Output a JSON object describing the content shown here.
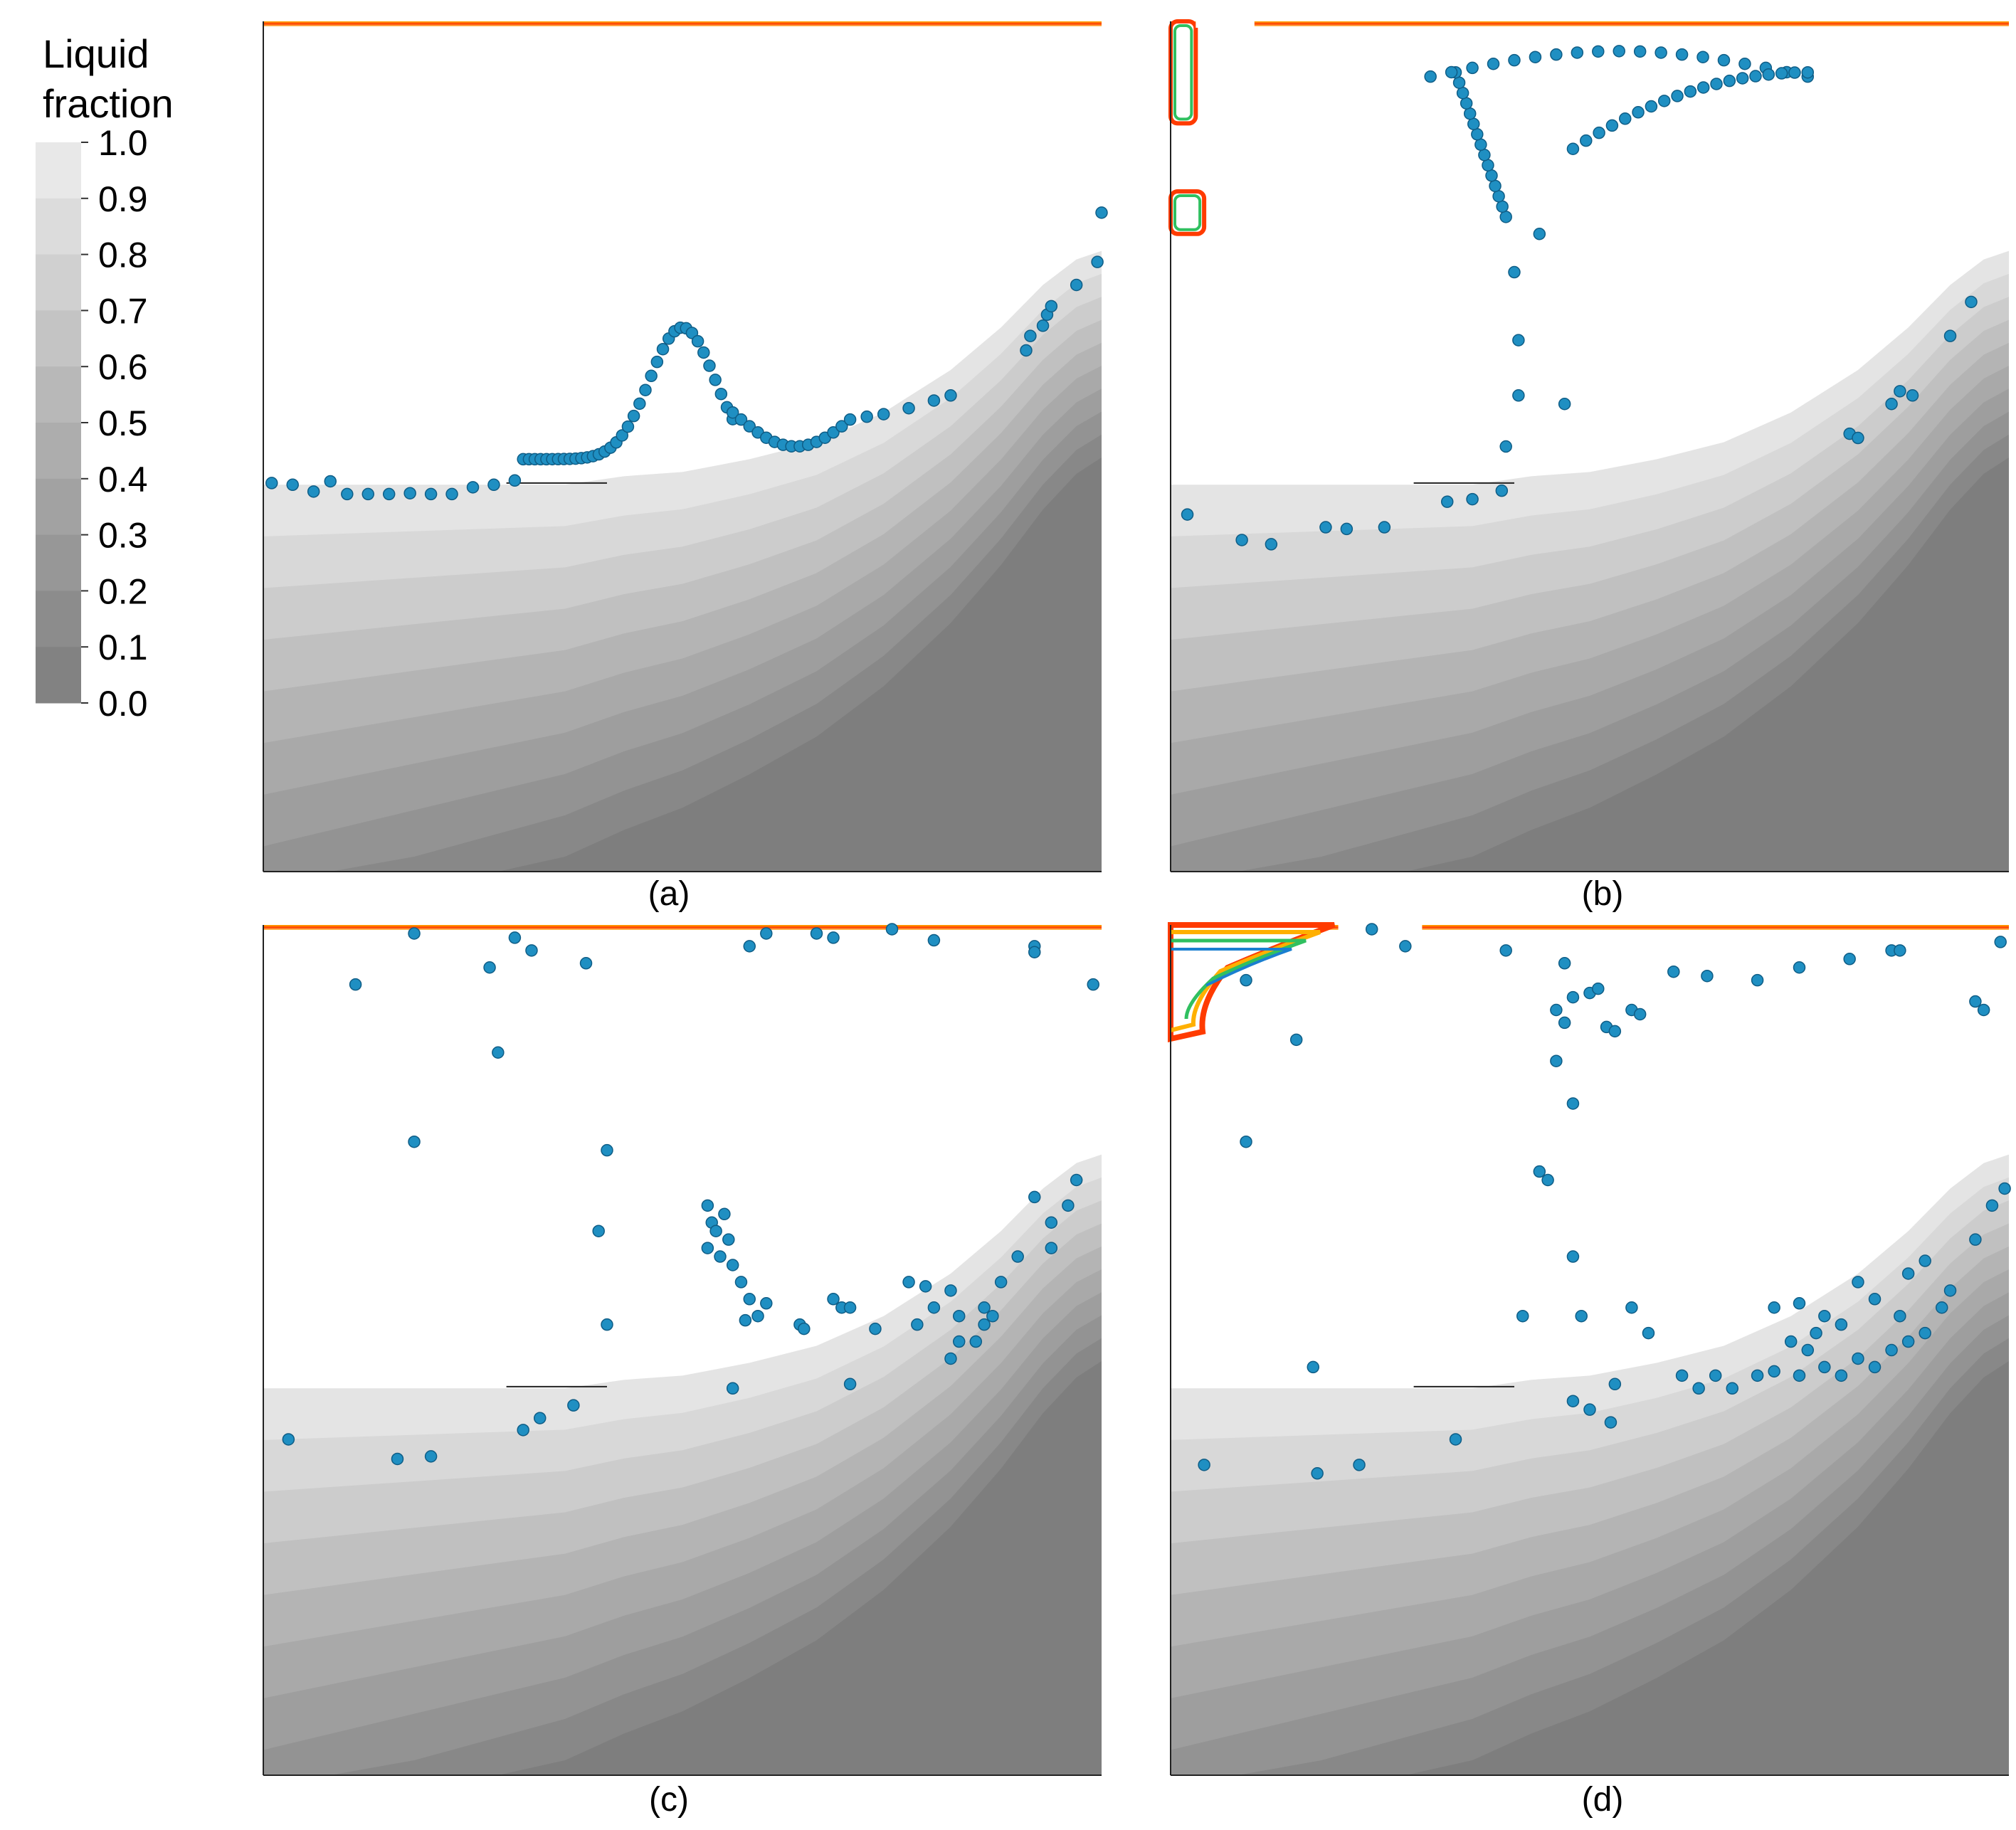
{
  "legend": {
    "title_line1": "Liquid",
    "title_line2": "fraction",
    "ticks": [
      "1.0",
      "0.9",
      "0.8",
      "0.7",
      "0.6",
      "0.5",
      "0.4",
      "0.3",
      "0.2",
      "0.1",
      "0.0"
    ],
    "colors": [
      "#e8e8e8",
      "#dcdcdc",
      "#d0d0d0",
      "#c4c4c4",
      "#b8b8b8",
      "#adadad",
      "#a2a2a2",
      "#979797",
      "#8c8c8c",
      "#828282"
    ]
  },
  "panels": [
    {
      "id": "a",
      "caption": "(a)"
    },
    {
      "id": "b",
      "caption": "(b)"
    },
    {
      "id": "c",
      "caption": "(c)"
    },
    {
      "id": "d",
      "caption": "(d)"
    }
  ],
  "colors": {
    "particle": "#1f8fc2",
    "particle_edge": "#0f5d86",
    "liquid_top": "#e6e6e6",
    "solid": "#7a7a7a",
    "surface_hot": "#ff3b00",
    "surface_mid": "#ffb000",
    "surface_cool": "#30c060",
    "surface_cold": "#1a7fd0"
  }
}
